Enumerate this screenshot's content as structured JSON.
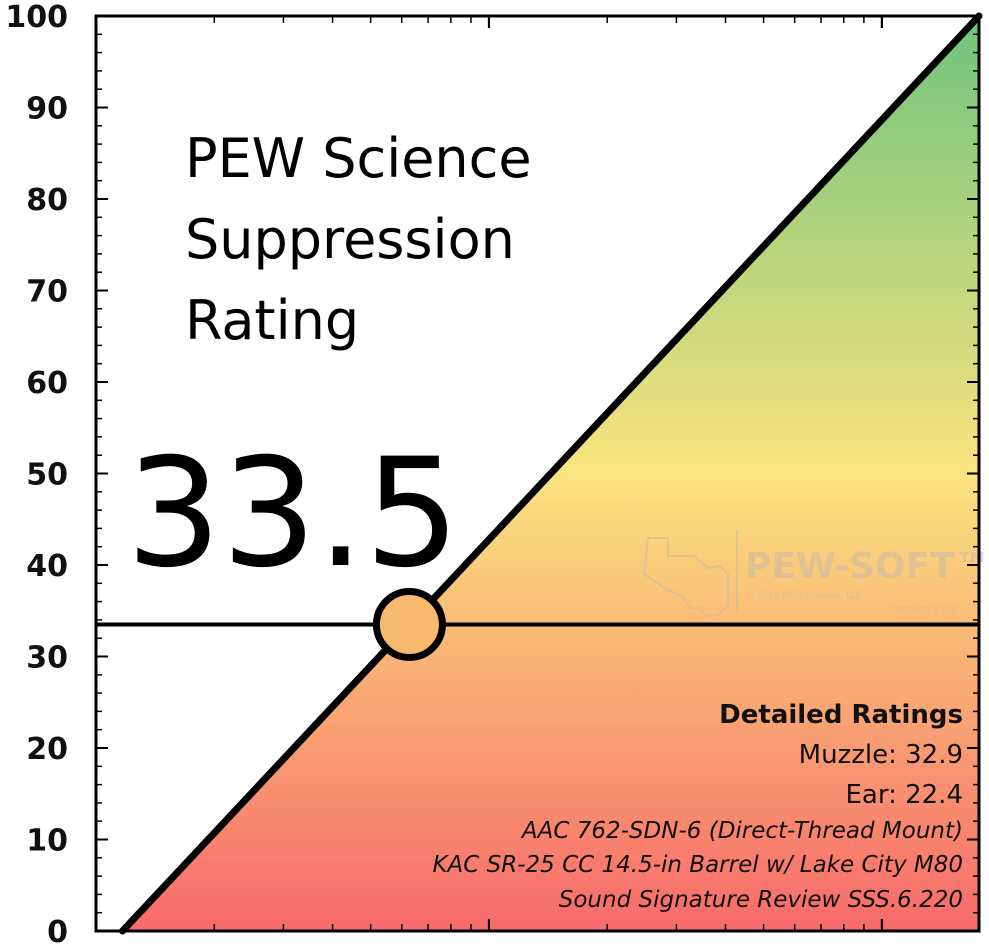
{
  "chart_data": {
    "type": "line",
    "title": [
      "PEW Science",
      "Suppression",
      "Rating"
    ],
    "score_label": "33.5",
    "rating": 33.5,
    "ylim": [
      0,
      100
    ],
    "y_ticks": [
      0,
      10,
      20,
      30,
      40,
      50,
      60,
      70,
      80,
      90,
      100
    ],
    "diagonal": {
      "x_frac": [
        0.03,
        1.0
      ],
      "y": [
        0,
        100
      ]
    },
    "gradient_colors": {
      "top": "#6fc47c",
      "mid": "#fbe47e",
      "bottom": "#f76a6a"
    },
    "marker_color": "#f7b96e",
    "details": {
      "heading": "Detailed Ratings",
      "muzzle": "Muzzle: 32.9",
      "ear": "Ear: 22.4",
      "suppressor": "AAC 762-SDN-6 (Direct-Thread Mount)",
      "host": "KAC SR-25 CC 14.5-in Barrel w/ Lake City M80",
      "review": "Sound Signature Review SSS.6.220"
    },
    "watermark": {
      "brand": "PEW-SOFT™",
      "copyright": "© 2019 PEW Science, LLC",
      "version": "Version 1.0.2"
    }
  }
}
